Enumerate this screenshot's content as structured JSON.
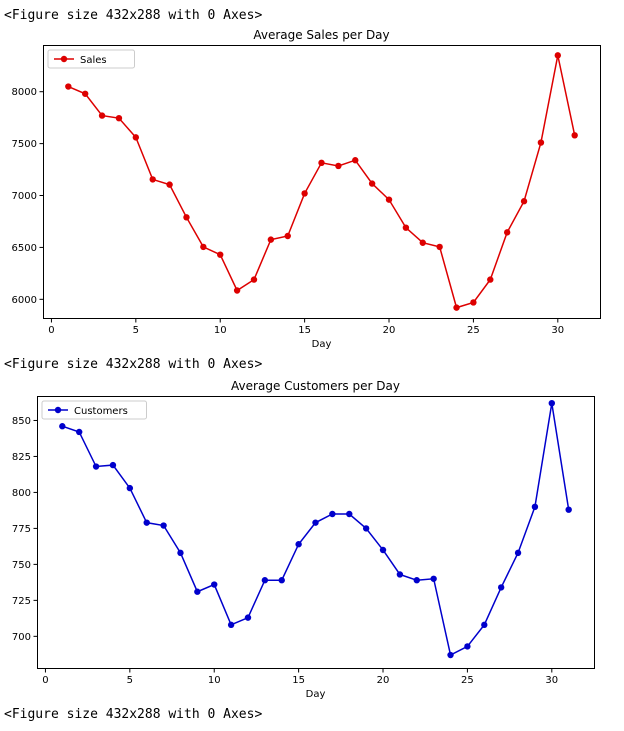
{
  "outputs": [
    "<Figure size 432x288 with 0 Axes>",
    "<Figure size 432x288 with 0 Axes>",
    "<Figure size 432x288 with 0 Axes>"
  ],
  "chart_data": [
    {
      "type": "line",
      "title": "Average Sales per Day",
      "xlabel": "Day",
      "ylabel": "",
      "color": "#dd0000",
      "x": [
        1,
        2,
        3,
        4,
        5,
        6,
        7,
        8,
        9,
        10,
        11,
        12,
        13,
        14,
        15,
        16,
        17,
        18,
        19,
        20,
        21,
        22,
        23,
        24,
        25,
        26,
        27,
        28,
        29,
        30,
        31
      ],
      "series": [
        {
          "name": "Sales",
          "values": [
            8050,
            7980,
            7770,
            7745,
            7560,
            7155,
            7105,
            6790,
            6505,
            6430,
            6085,
            6190,
            6575,
            6610,
            7020,
            7315,
            7285,
            7340,
            7115,
            6960,
            6690,
            6545,
            6505,
            5920,
            5970,
            6190,
            6645,
            6945,
            7510,
            8350,
            7580
          ]
        }
      ],
      "xlim": [
        -0.5,
        32.5
      ],
      "ylim": [
        5820,
        8450
      ],
      "xticks": [
        0,
        5,
        10,
        15,
        20,
        25,
        30
      ],
      "xtick_labels": [
        "0",
        "5",
        "10",
        "15",
        "20",
        "25",
        "30"
      ],
      "yticks": [
        6000,
        6500,
        7000,
        7500,
        8000
      ],
      "ytick_labels": [
        "6000",
        "6500",
        "7000",
        "7500",
        "8000"
      ],
      "legend": "top-left"
    },
    {
      "type": "line",
      "title": "Average Customers per Day",
      "xlabel": "Day",
      "ylabel": "",
      "color": "#0000cc",
      "x": [
        1,
        2,
        3,
        4,
        5,
        6,
        7,
        8,
        9,
        10,
        11,
        12,
        13,
        14,
        15,
        16,
        17,
        18,
        19,
        20,
        21,
        22,
        23,
        24,
        25,
        26,
        27,
        28,
        29,
        30,
        31
      ],
      "series": [
        {
          "name": "Customers",
          "values": [
            846,
            842,
            818,
            819,
            803,
            779,
            777,
            758,
            731,
            736,
            708,
            713,
            739,
            739,
            764,
            779,
            785,
            785,
            775,
            760,
            743,
            739,
            740,
            687,
            693,
            708,
            734,
            758,
            790,
            862,
            788
          ]
        }
      ],
      "xlim": [
        -0.5,
        32.5
      ],
      "ylim": [
        678,
        867
      ],
      "xticks": [
        0,
        5,
        10,
        15,
        20,
        25,
        30
      ],
      "xtick_labels": [
        "0",
        "5",
        "10",
        "15",
        "20",
        "25",
        "30"
      ],
      "yticks": [
        700,
        725,
        750,
        775,
        800,
        825,
        850
      ],
      "ytick_labels": [
        "700",
        "725",
        "750",
        "775",
        "800",
        "825",
        "850"
      ],
      "legend": "top-left"
    }
  ]
}
